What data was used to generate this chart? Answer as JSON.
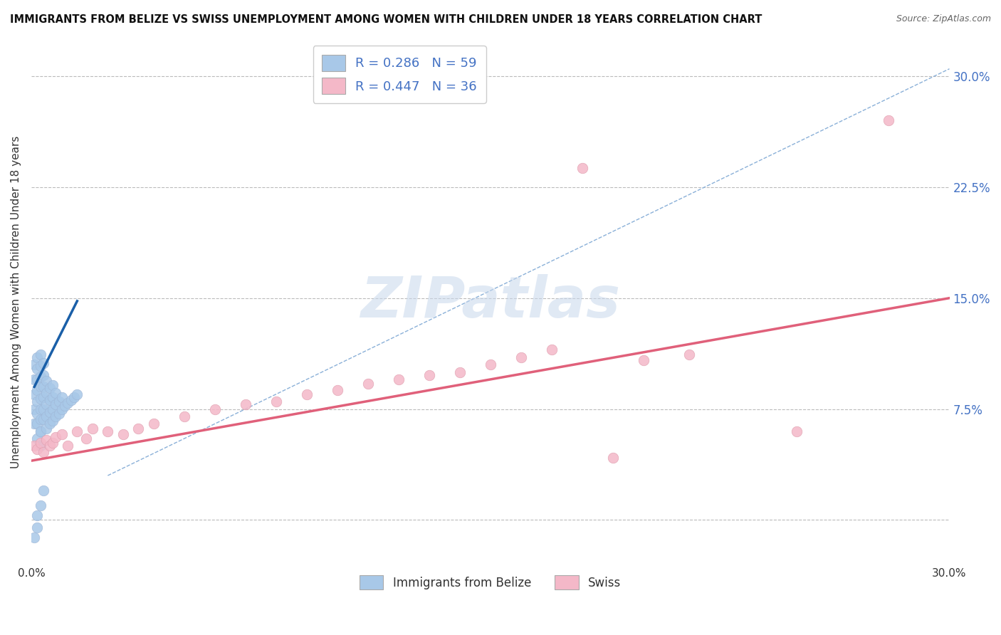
{
  "title": "IMMIGRANTS FROM BELIZE VS SWISS UNEMPLOYMENT AMONG WOMEN WITH CHILDREN UNDER 18 YEARS CORRELATION CHART",
  "source": "Source: ZipAtlas.com",
  "xlabel_legend": "Immigrants from Belize",
  "ylabel": "Unemployment Among Women with Children Under 18 years",
  "xlim": [
    0.0,
    0.3
  ],
  "ylim": [
    -0.03,
    0.325
  ],
  "xticks": [
    0.0,
    0.05,
    0.1,
    0.15,
    0.2,
    0.25,
    0.3
  ],
  "yticks_right": [
    0.0,
    0.075,
    0.15,
    0.225,
    0.3
  ],
  "legend_R1": "R = 0.286",
  "legend_N1": "N = 59",
  "legend_R2": "R = 0.447",
  "legend_N2": "N = 36",
  "color_blue": "#a8c8e8",
  "color_pink": "#f4b8c8",
  "color_blue_line": "#1a5fa8",
  "color_pink_line": "#e0607a",
  "color_dashed": "#8ab0d8",
  "blue_x": [
    0.001,
    0.001,
    0.001,
    0.001,
    0.001,
    0.002,
    0.002,
    0.002,
    0.002,
    0.002,
    0.002,
    0.002,
    0.002,
    0.003,
    0.003,
    0.003,
    0.003,
    0.003,
    0.003,
    0.003,
    0.003,
    0.003,
    0.003,
    0.004,
    0.004,
    0.004,
    0.004,
    0.004,
    0.004,
    0.005,
    0.005,
    0.005,
    0.005,
    0.005,
    0.006,
    0.006,
    0.006,
    0.006,
    0.007,
    0.007,
    0.007,
    0.007,
    0.008,
    0.008,
    0.008,
    0.009,
    0.009,
    0.01,
    0.01,
    0.011,
    0.012,
    0.013,
    0.014,
    0.015,
    0.001,
    0.002,
    0.002,
    0.003,
    0.004
  ],
  "blue_y": [
    0.065,
    0.075,
    0.085,
    0.095,
    0.105,
    0.055,
    0.065,
    0.072,
    0.08,
    0.088,
    0.095,
    0.102,
    0.11,
    0.05,
    0.06,
    0.068,
    0.075,
    0.082,
    0.09,
    0.097,
    0.104,
    0.112,
    0.06,
    0.068,
    0.075,
    0.083,
    0.09,
    0.098,
    0.106,
    0.062,
    0.07,
    0.078,
    0.086,
    0.094,
    0.065,
    0.073,
    0.081,
    0.089,
    0.067,
    0.075,
    0.083,
    0.091,
    0.07,
    0.078,
    0.086,
    0.072,
    0.08,
    0.075,
    0.083,
    0.077,
    0.079,
    0.081,
    0.083,
    0.085,
    -0.012,
    -0.005,
    0.003,
    0.01,
    0.02
  ],
  "pink_x": [
    0.001,
    0.002,
    0.003,
    0.004,
    0.005,
    0.006,
    0.007,
    0.008,
    0.01,
    0.012,
    0.015,
    0.018,
    0.02,
    0.025,
    0.03,
    0.035,
    0.04,
    0.05,
    0.06,
    0.07,
    0.08,
    0.09,
    0.1,
    0.11,
    0.12,
    0.13,
    0.14,
    0.15,
    0.16,
    0.17,
    0.18,
    0.19,
    0.2,
    0.215,
    0.25,
    0.28
  ],
  "pink_y": [
    0.05,
    0.048,
    0.052,
    0.046,
    0.054,
    0.05,
    0.052,
    0.056,
    0.058,
    0.05,
    0.06,
    0.055,
    0.062,
    0.06,
    0.058,
    0.062,
    0.065,
    0.07,
    0.075,
    0.078,
    0.08,
    0.085,
    0.088,
    0.092,
    0.095,
    0.098,
    0.1,
    0.105,
    0.11,
    0.115,
    0.238,
    0.042,
    0.108,
    0.112,
    0.06,
    0.27
  ],
  "blue_trendline_x": [
    0.001,
    0.015
  ],
  "blue_trendline_y": [
    0.09,
    0.148
  ],
  "pink_trendline_x": [
    0.0,
    0.3
  ],
  "pink_trendline_y": [
    0.04,
    0.15
  ],
  "dashed_trendline_x": [
    0.025,
    0.3
  ],
  "dashed_trendline_y": [
    0.03,
    0.305
  ],
  "watermark": "ZIPatlas"
}
